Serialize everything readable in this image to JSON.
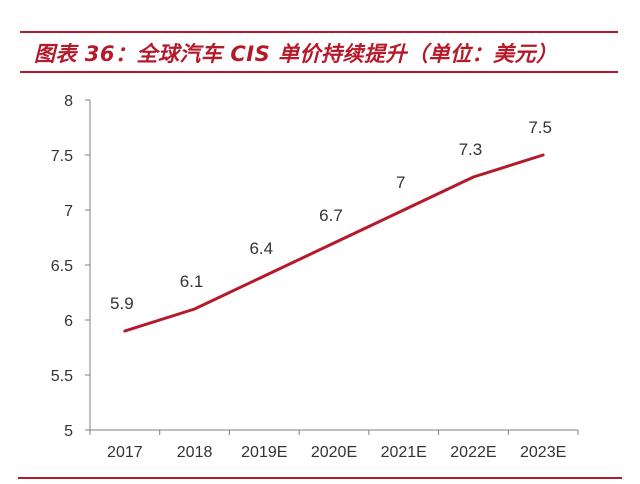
{
  "title": "图表 36：全球汽车 CIS 单价持续提升（单位：美元）",
  "colors": {
    "accent": "#b51a2b",
    "axis": "#808080",
    "text": "#333333"
  },
  "chart_data": {
    "type": "line",
    "categories": [
      "2017",
      "2018",
      "2019E",
      "2020E",
      "2021E",
      "2022E",
      "2023E"
    ],
    "series": [
      {
        "values": [
          5.9,
          6.1,
          6.4,
          6.7,
          7,
          7.3,
          7.5
        ],
        "labels": [
          "5.9",
          "6.1",
          "6.4",
          "6.7",
          "7",
          "7.3",
          "7.5"
        ]
      }
    ],
    "ylim": [
      5,
      8
    ],
    "yticks": [
      5,
      5.5,
      6,
      6.5,
      7,
      7.5,
      8
    ],
    "ytick_labels": [
      "5",
      "5.5",
      "6",
      "6.5",
      "7",
      "7.5",
      "8"
    ],
    "xlabel": "",
    "ylabel": "",
    "grid": false,
    "legend": false
  }
}
